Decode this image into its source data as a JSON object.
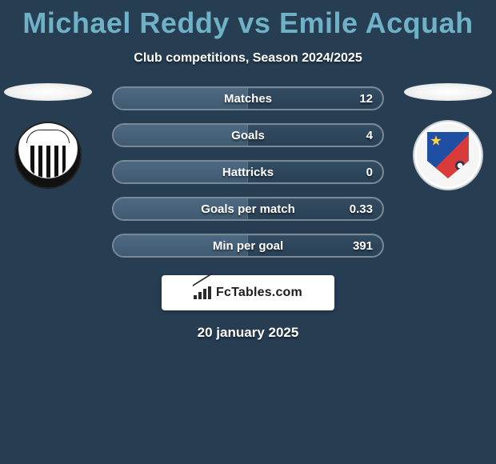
{
  "title": "Michael Reddy vs Emile Acquah",
  "subtitle": "Club competitions, Season 2024/2025",
  "date": "20 january 2025",
  "brand": "FcTables.com",
  "colors": {
    "background": "#263d52",
    "title": "#6fb2c7",
    "bar_border": "#7a8996",
    "bar_bg_top": "#324c62",
    "bar_bg_bottom": "#2a4155",
    "bar_fill_top": "#4e6a82",
    "bar_fill_bottom": "#3f5a71",
    "text": "#ffffff"
  },
  "stats": [
    {
      "label": "Matches",
      "right_value": "12",
      "left_fill_pct": 50
    },
    {
      "label": "Goals",
      "right_value": "4",
      "left_fill_pct": 50
    },
    {
      "label": "Hattricks",
      "right_value": "0",
      "left_fill_pct": 50
    },
    {
      "label": "Goals per match",
      "right_value": "0.33",
      "left_fill_pct": 50
    },
    {
      "label": "Min per goal",
      "right_value": "391",
      "left_fill_pct": 50
    }
  ],
  "left_club": {
    "name": "grimsby-town-badge"
  },
  "right_club": {
    "name": "barrow-badge"
  }
}
